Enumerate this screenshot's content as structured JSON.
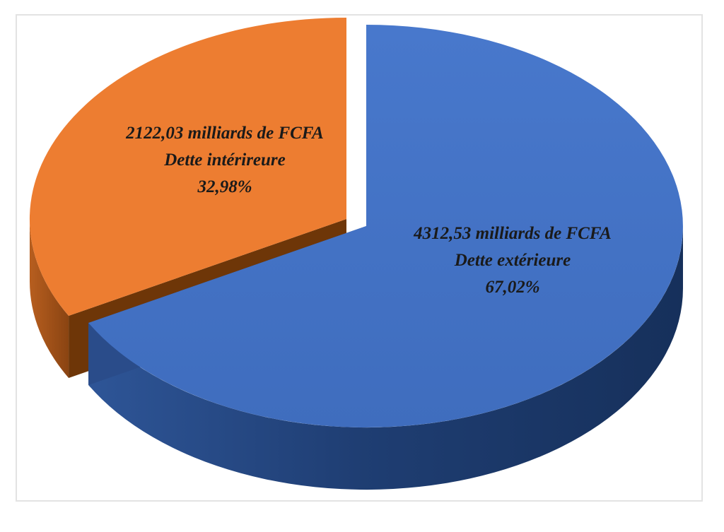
{
  "chart_data": {
    "type": "pie",
    "style": "3d-exploded",
    "title": "",
    "slices": [
      {
        "label": "Dette extérieure",
        "amount": 4312.53,
        "amount_text": "4312,53 milliards de FCFA",
        "percent": 67.02,
        "percent_text": "67,02%",
        "color": "#4472C4"
      },
      {
        "label": "Dette intérireure",
        "amount": 2122.03,
        "amount_text": "2122,03 milliards de FCFA",
        "percent": 32.98,
        "percent_text": "32,98%",
        "color": "#ED7D31"
      }
    ],
    "legend": "none"
  }
}
